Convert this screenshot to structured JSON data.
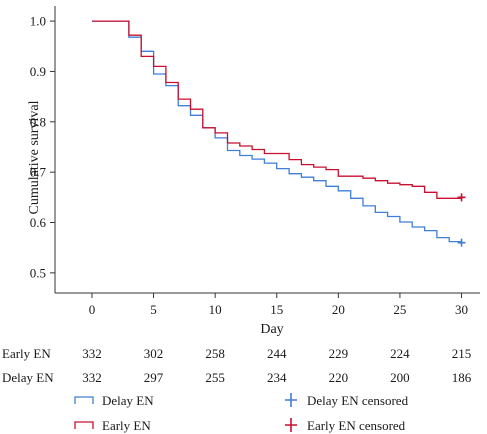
{
  "chart_data": {
    "type": "line",
    "subtype": "kaplan-meier",
    "title": "",
    "xlabel": "Day",
    "ylabel": "Cumulative survival",
    "xlim": [
      -3,
      31.5
    ],
    "ylim": [
      0.46,
      1.03
    ],
    "xticks": [
      0,
      5,
      10,
      15,
      20,
      25,
      30
    ],
    "yticks": [
      0.5,
      0.6,
      0.7,
      0.8,
      0.9,
      1.0
    ],
    "xtick_labels": [
      "0",
      "5",
      "10",
      "15",
      "20",
      "25",
      "30"
    ],
    "ytick_labels": [
      "0.5",
      "0.6",
      "0.7",
      "0.8",
      "0.9",
      "1.0"
    ],
    "grid": false,
    "series": [
      {
        "name": "Delay EN",
        "color": "#3f7fd6",
        "steps": [
          [
            0,
            1.0
          ],
          [
            3,
            0.968
          ],
          [
            4,
            0.94
          ],
          [
            5,
            0.895
          ],
          [
            6,
            0.872
          ],
          [
            7,
            0.832
          ],
          [
            8,
            0.813
          ],
          [
            9,
            0.788
          ],
          [
            10,
            0.768
          ],
          [
            11,
            0.743
          ],
          [
            12,
            0.733
          ],
          [
            13,
            0.726
          ],
          [
            14,
            0.718
          ],
          [
            15,
            0.707
          ],
          [
            16,
            0.697
          ],
          [
            17,
            0.69
          ],
          [
            18,
            0.683
          ],
          [
            19,
            0.672
          ],
          [
            20,
            0.663
          ],
          [
            21,
            0.648
          ],
          [
            22,
            0.633
          ],
          [
            23,
            0.62
          ],
          [
            24,
            0.612
          ],
          [
            25,
            0.601
          ],
          [
            26,
            0.591
          ],
          [
            27,
            0.584
          ],
          [
            28,
            0.57
          ],
          [
            29,
            0.562
          ],
          [
            30,
            0.558
          ]
        ],
        "censored": [
          [
            30,
            0.56
          ]
        ]
      },
      {
        "name": "Early EN",
        "color": "#c8102e",
        "steps": [
          [
            0,
            1.0
          ],
          [
            3,
            0.972
          ],
          [
            4,
            0.93
          ],
          [
            5,
            0.91
          ],
          [
            6,
            0.878
          ],
          [
            7,
            0.845
          ],
          [
            8,
            0.825
          ],
          [
            9,
            0.788
          ],
          [
            10,
            0.778
          ],
          [
            11,
            0.758
          ],
          [
            12,
            0.752
          ],
          [
            13,
            0.745
          ],
          [
            14,
            0.737
          ],
          [
            16,
            0.725
          ],
          [
            17,
            0.715
          ],
          [
            18,
            0.71
          ],
          [
            19,
            0.705
          ],
          [
            20,
            0.692
          ],
          [
            22,
            0.688
          ],
          [
            23,
            0.683
          ],
          [
            24,
            0.678
          ],
          [
            25,
            0.675
          ],
          [
            26,
            0.672
          ],
          [
            27,
            0.66
          ],
          [
            28,
            0.648
          ],
          [
            30,
            0.648
          ]
        ],
        "censored": [
          [
            30,
            0.65
          ]
        ]
      }
    ],
    "risk_table": {
      "times": [
        0,
        5,
        10,
        15,
        20,
        25,
        30
      ],
      "rows": [
        {
          "label": "Early EN",
          "values": [
            "332",
            "302",
            "258",
            "244",
            "229",
            "224",
            "215"
          ]
        },
        {
          "label": "Delay EN",
          "values": [
            "332",
            "297",
            "255",
            "234",
            "220",
            "200",
            "186"
          ]
        }
      ]
    },
    "legend": {
      "placement": "bottom",
      "entries": [
        {
          "label": "Delay EN",
          "kind": "line",
          "color": "#3f7fd6"
        },
        {
          "label": "Delay EN censored",
          "kind": "censor",
          "color": "#3f7fd6"
        },
        {
          "label": "Early EN",
          "kind": "line",
          "color": "#c8102e"
        },
        {
          "label": "Early EN censored",
          "kind": "censor",
          "color": "#c8102e"
        }
      ]
    }
  }
}
